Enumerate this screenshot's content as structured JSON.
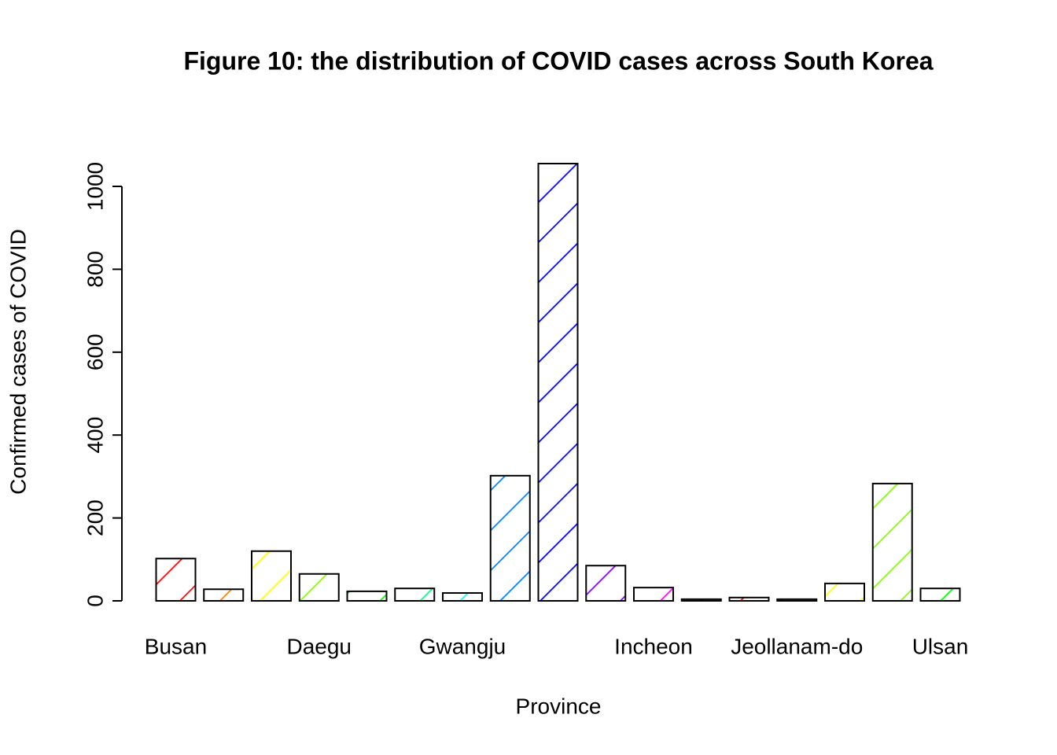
{
  "chart_data": {
    "type": "bar",
    "title": "Figure 10: the distribution of COVID cases across South Korea",
    "x_label": "Province",
    "y_label": "Confirmed cases of COVID",
    "categories": [
      "Busan",
      null,
      null,
      "Daegu",
      null,
      null,
      "Gwangju",
      null,
      null,
      null,
      "Incheon",
      null,
      null,
      "Jeollanam-do",
      null,
      null,
      "Ulsan"
    ],
    "values": [
      102,
      28,
      120,
      65,
      23,
      30,
      19,
      302,
      1055,
      85,
      32,
      4,
      8,
      4,
      42,
      283,
      30
    ],
    "colors": [
      "#FF0000",
      "#FF8000",
      "#FFFF00",
      "#80FF00",
      "#00FF00",
      "#00FF80",
      "#00FFFF",
      "#0080FF",
      "#0000FF",
      "#8000FF",
      "#FF00FF",
      "#FF0080",
      "#FF0000",
      "#FF8000",
      "#FFFF00",
      "#80FF00",
      "#00FF00"
    ],
    "ylim": [
      0,
      1000
    ],
    "yticks": [
      0,
      200,
      400,
      600,
      800,
      1000
    ]
  }
}
